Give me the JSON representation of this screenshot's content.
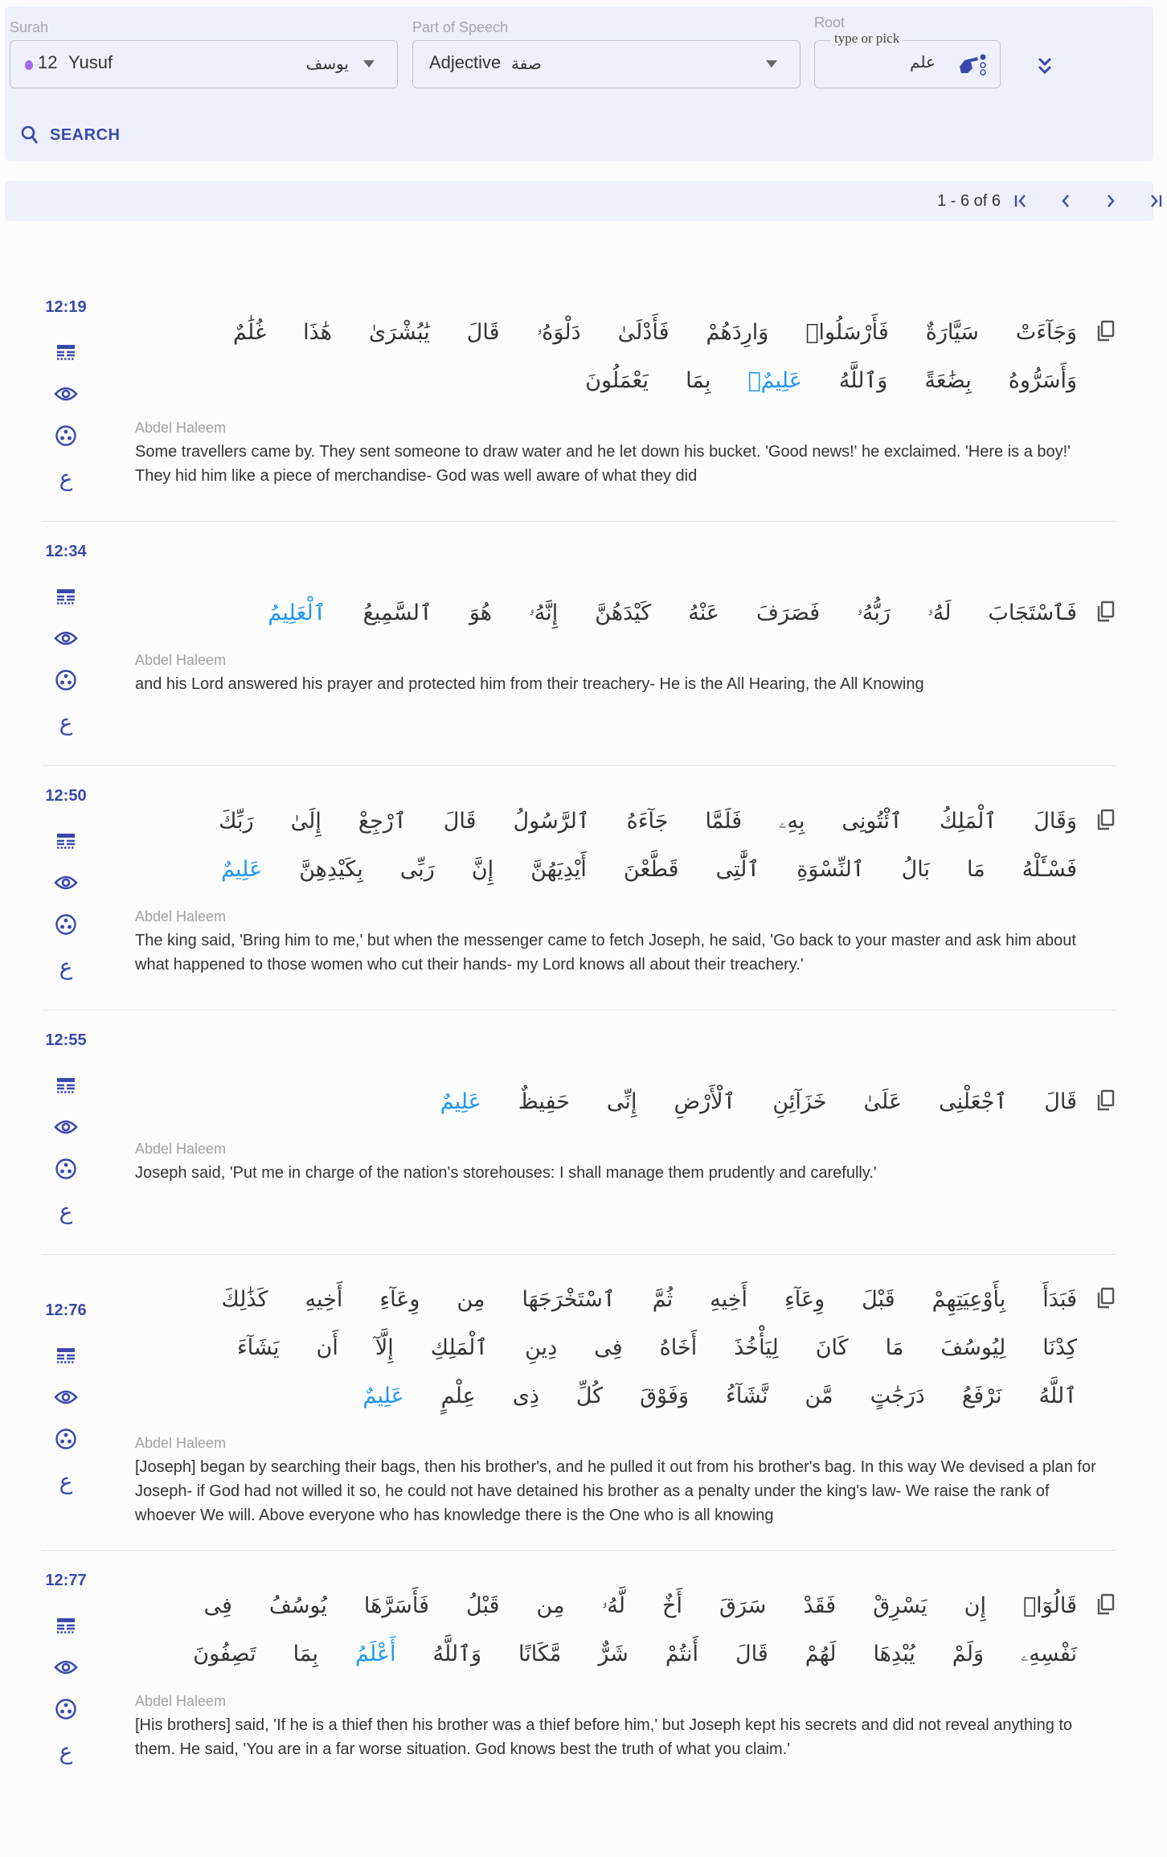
{
  "filters": {
    "surah": {
      "label": "Surah",
      "number": "12",
      "name": "Yusuf",
      "arabic": "يوسف",
      "dot_color": "#a66af0"
    },
    "pos": {
      "label": "Part of Speech",
      "value": "Adjective",
      "arabic": "صفة"
    },
    "root": {
      "label": "Root",
      "legend": "type or pick",
      "value": "علم"
    },
    "search_label": "SEARCH"
  },
  "pagination": {
    "text": "1 - 6 of 6"
  },
  "colors": {
    "accent": "#3949ab",
    "highlight": "#2196f3",
    "panel": "#eef1fd"
  },
  "verses": [
    {
      "ref": "12:19",
      "translator": "Abdel Haleem",
      "words": [
        "وَجَآءَتْ",
        "سَيَّارَةٌ",
        "فَأَرْسَلُوا۟",
        "وَارِدَهُمْ",
        "فَأَدْلَىٰ",
        "دَلْوَهُۥ",
        "قَالَ",
        "يَٰبُشْرَىٰ",
        "هَٰذَا",
        "غُلَٰمٌ",
        "وَأَسَرُّوهُ",
        "بِضَٰعَةً",
        "وَٱللَّهُ",
        "عَلِيمٌۢ",
        "بِمَا",
        "يَعْمَلُونَ"
      ],
      "highlight": [
        13
      ],
      "translation": "Some travellers came by. They sent someone to draw water and he let down his bucket. 'Good news!' he exclaimed. 'Here is a boy!' They hid him like a piece of merchandise- God was well aware of what they did"
    },
    {
      "ref": "12:34",
      "translator": "Abdel Haleem",
      "words": [
        "فَٱسْتَجَابَ",
        "لَهُۥ",
        "رَبُّهُۥ",
        "فَصَرَفَ",
        "عَنْهُ",
        "كَيْدَهُنَّ",
        "إِنَّهُۥ",
        "هُوَ",
        "ٱلسَّمِيعُ",
        "ٱلْعَلِيمُ"
      ],
      "highlight": [
        9
      ],
      "translation": "and his Lord answered his prayer and protected him from their treachery- He is the All Hearing, the All Knowing"
    },
    {
      "ref": "12:50",
      "translator": "Abdel Haleem",
      "words": [
        "وَقَالَ",
        "ٱلْمَلِكُ",
        "ٱئْتُونِى",
        "بِهِۦ",
        "فَلَمَّا",
        "جَآءَهُ",
        "ٱلرَّسُولُ",
        "قَالَ",
        "ٱرْجِعْ",
        "إِلَىٰ",
        "رَبِّكَ",
        "فَسْـَٔلْهُ",
        "مَا",
        "بَالُ",
        "ٱلنِّسْوَةِ",
        "ٱلَّٰتِى",
        "قَطَّعْنَ",
        "أَيْدِيَهُنَّ",
        "إِنَّ",
        "رَبِّى",
        "بِكَيْدِهِنَّ",
        "عَلِيمٌ"
      ],
      "highlight": [
        21
      ],
      "translation": "The king said, 'Bring him to me,' but when the messenger came to fetch Joseph, he said, 'Go back to your master and ask him about what happened to those women who cut their hands- my Lord knows all about their treachery.'"
    },
    {
      "ref": "12:55",
      "translator": "Abdel Haleem",
      "words": [
        "قَالَ",
        "ٱجْعَلْنِى",
        "عَلَىٰ",
        "خَزَآئِنِ",
        "ٱلْأَرْضِ",
        "إِنِّى",
        "حَفِيظٌ",
        "عَلِيمٌ"
      ],
      "highlight": [
        7
      ],
      "translation": "Joseph said, 'Put me in charge of the nation's storehouses: I shall manage them prudently and carefully.'"
    },
    {
      "ref": "12:76",
      "translator": "Abdel Haleem",
      "words": [
        "فَبَدَأَ",
        "بِأَوْعِيَتِهِمْ",
        "قَبْلَ",
        "وِعَآءِ",
        "أَخِيهِ",
        "ثُمَّ",
        "ٱسْتَخْرَجَهَا",
        "مِن",
        "وِعَآءِ",
        "أَخِيهِ",
        "كَذَٰلِكَ",
        "كِدْنَا",
        "لِيُوسُفَ",
        "مَا",
        "كَانَ",
        "لِيَأْخُذَ",
        "أَخَاهُ",
        "فِى",
        "دِينِ",
        "ٱلْمَلِكِ",
        "إِلَّآ",
        "أَن",
        "يَشَآءَ",
        "ٱللَّهُ",
        "نَرْفَعُ",
        "دَرَجَٰتٍ",
        "مَّن",
        "نَّشَآءُ",
        "وَفَوْقَ",
        "كُلِّ",
        "ذِى",
        "عِلْمٍ",
        "عَلِيمٌ"
      ],
      "highlight": [
        32
      ],
      "translation": "[Joseph] began by searching their bags, then his brother's, and he pulled it out from his brother's bag. In this way We devised a plan for Joseph- if God had not willed it so, he could not have detained his brother as a penalty under the king's law- We raise the rank of whoever We will. Above everyone who has knowledge there is the One who is all knowing"
    },
    {
      "ref": "12:77",
      "translator": "Abdel Haleem",
      "words": [
        "قَالُوٓا۟",
        "إِن",
        "يَسْرِقْ",
        "فَقَدْ",
        "سَرَقَ",
        "أَخٌ",
        "لَّهُۥ",
        "مِن",
        "قَبْلُ",
        "فَأَسَرَّهَا",
        "يُوسُفُ",
        "فِى",
        "نَفْسِهِۦ",
        "وَلَمْ",
        "يُبْدِهَا",
        "لَهُمْ",
        "قَالَ",
        "أَنتُمْ",
        "شَرٌّ",
        "مَّكَانًا",
        "وَٱللَّهُ",
        "أَعْلَمُ",
        "بِمَا",
        "تَصِفُونَ"
      ],
      "highlight": [
        21
      ],
      "translation": "[His brothers] said, 'If he is a thief then his brother was a thief before him,' but Joseph kept his secrets and did not reveal anything to them. He said, 'You are in a far worse situation. God knows best the truth of what you claim.'"
    }
  ],
  "verse_icons": [
    "word-table-icon",
    "eye-icon",
    "grammar-dots-icon",
    "arabic-letter-icon"
  ]
}
